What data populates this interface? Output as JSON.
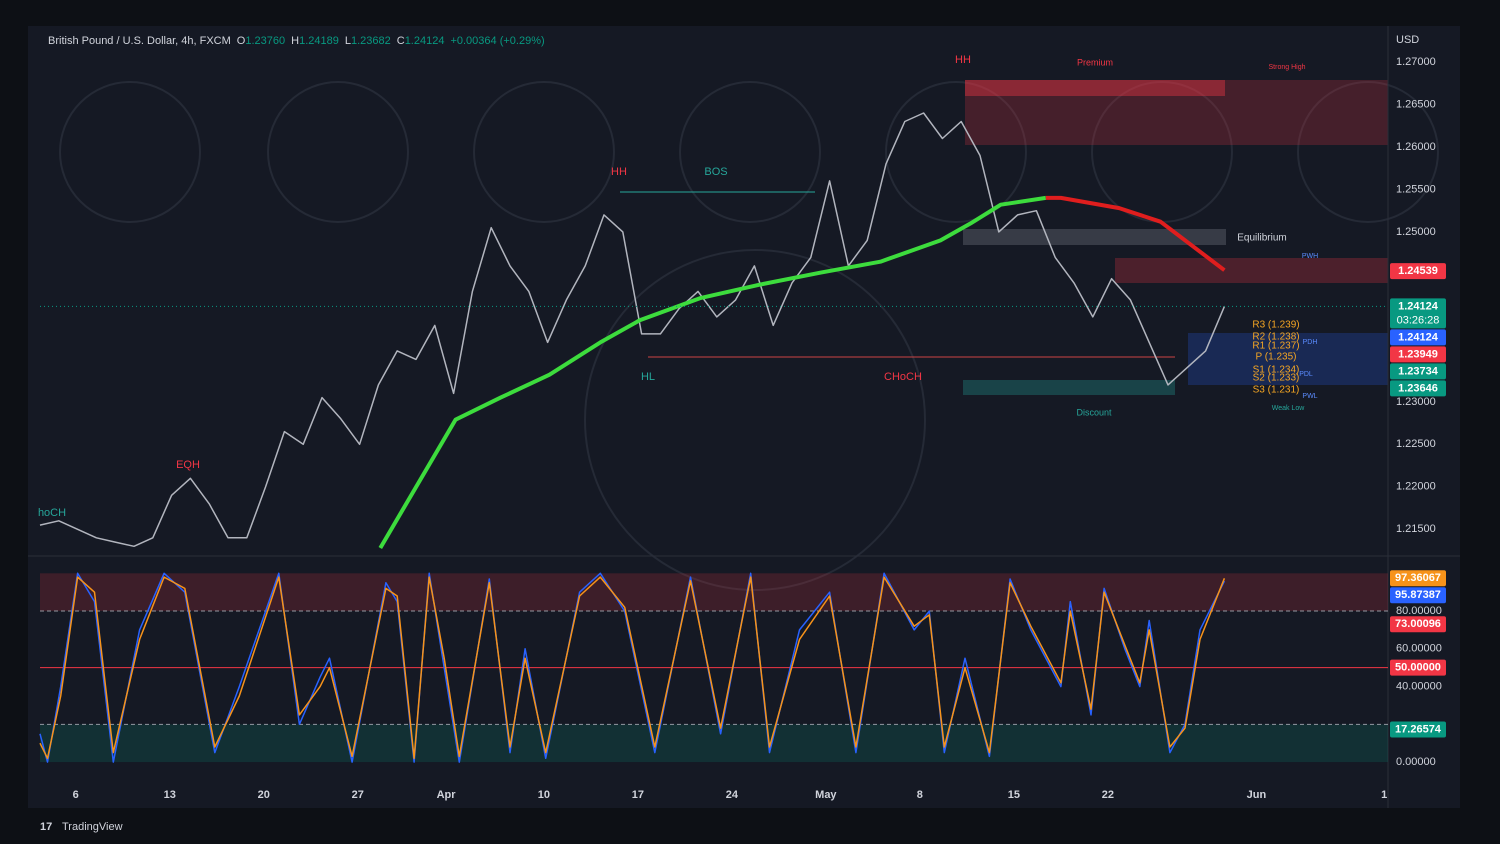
{
  "header": {
    "symbol": "British Pound / U.S. Dollar, 4h, FXCM",
    "ohlc": [
      [
        "O",
        "1.23760"
      ],
      [
        "H",
        "1.24189"
      ],
      [
        "L",
        "1.23682"
      ],
      [
        "C",
        "1.24124"
      ]
    ],
    "change": "+0.00364 (+0.29%)",
    "currency": "USD",
    "brand": "TradingView"
  },
  "chart_data": [
    {
      "type": "line",
      "xlim": [
        0,
        71.7
      ],
      "ylim": [
        1.2128,
        1.274
      ],
      "xticks": [
        {
          "value": 1.9,
          "label": "6"
        },
        {
          "value": 6.9,
          "label": "13"
        },
        {
          "value": 11.9,
          "label": "20"
        },
        {
          "value": 16.9,
          "label": "27"
        },
        {
          "value": 21.6,
          "label": "Apr"
        },
        {
          "value": 26.8,
          "label": "10"
        },
        {
          "value": 31.8,
          "label": "17"
        },
        {
          "value": 36.8,
          "label": "24"
        },
        {
          "value": 41.8,
          "label": "May"
        },
        {
          "value": 46.8,
          "label": "8"
        },
        {
          "value": 51.8,
          "label": "15"
        },
        {
          "value": 56.8,
          "label": "22"
        },
        {
          "value": 64.7,
          "label": "Jun"
        },
        {
          "value": 71.5,
          "label": "1"
        }
      ],
      "yticks": [
        {
          "value": 1.27,
          "label": "1.27000"
        },
        {
          "value": 1.265,
          "label": "1.26500"
        },
        {
          "value": 1.26,
          "label": "1.26000"
        },
        {
          "value": 1.255,
          "label": "1.25500"
        },
        {
          "value": 1.25,
          "label": "1.25000"
        },
        {
          "value": 1.23,
          "label": "1.23000"
        },
        {
          "value": 1.225,
          "label": "1.22500"
        },
        {
          "value": 1.22,
          "label": "1.22000"
        },
        {
          "value": 1.215,
          "label": "1.21500"
        }
      ],
      "series": [
        {
          "color": "#b2b5be",
          "x": [
            0,
            1,
            2,
            3,
            4,
            5,
            6,
            7,
            8,
            9,
            10,
            11,
            12,
            13,
            14,
            15,
            16,
            17,
            18,
            19,
            20,
            21,
            22,
            23,
            24,
            25,
            26,
            27,
            28,
            29,
            30,
            31,
            32,
            33,
            34,
            35,
            36,
            37,
            38,
            39,
            40,
            41,
            42,
            43,
            44,
            45,
            46,
            47,
            48,
            49,
            50,
            51,
            52,
            53,
            54,
            55,
            56,
            57,
            58,
            59,
            60,
            61,
            62,
            63
          ],
          "values": [
            1.2155,
            1.216,
            1.215,
            1.214,
            1.2135,
            1.213,
            1.214,
            1.219,
            1.221,
            1.218,
            1.214,
            1.214,
            1.22,
            1.2265,
            1.225,
            1.2305,
            1.228,
            1.225,
            1.232,
            1.236,
            1.235,
            1.239,
            1.231,
            1.243,
            1.2505,
            1.246,
            1.243,
            1.237,
            1.242,
            1.246,
            1.252,
            1.25,
            1.238,
            1.238,
            1.241,
            1.243,
            1.24,
            1.242,
            1.246,
            1.239,
            1.244,
            1.247,
            1.256,
            1.246,
            1.249,
            1.258,
            1.263,
            1.264,
            1.261,
            1.263,
            1.259,
            1.25,
            1.252,
            1.2525,
            1.247,
            1.244,
            1.24,
            1.2445,
            1.242,
            1.237,
            1.232,
            1.234,
            1.236,
            1.24124
          ]
        },
        {
          "color": "#3ddc3d",
          "x": [
            18.1,
            22.1,
            24.5,
            27.1,
            29.8,
            31.9,
            35.1,
            38.3,
            41.5,
            44.7,
            47.9,
            49.5,
            51.1,
            53.5
          ],
          "values": [
            1.2128,
            1.2279,
            1.2305,
            1.2332,
            1.237,
            1.2396,
            1.2422,
            1.2438,
            1.2452,
            1.2465,
            1.249,
            1.251,
            1.2532,
            1.254
          ]
        },
        {
          "color": "#e01e1e",
          "x": [
            53.5,
            54.3,
            57.4,
            59.6,
            63.0
          ],
          "values": [
            1.254,
            1.254,
            1.2528,
            1.2512,
            1.2455
          ]
        }
      ],
      "price_tags": [
        {
          "value": 1.24539,
          "label": "1.24539",
          "color": "#f23645"
        },
        {
          "value": 1.24124,
          "label": "1.24124",
          "color": "#089981"
        },
        {
          "value": 1.24124,
          "label": "1.24124",
          "color": "#2962ff"
        },
        {
          "value": 1.23949,
          "label": "1.23949",
          "color": "#f23645"
        },
        {
          "value": 1.23734,
          "label": "1.23734",
          "color": "#089981"
        },
        {
          "value": 1.23646,
          "label": "1.23646",
          "color": "#089981"
        }
      ],
      "countdown": "03:26:28",
      "annotations": [
        "HH",
        "BOS",
        "HH",
        "Premium",
        "Strong High",
        "Equilibrium",
        "HL",
        "CHoCH",
        "Discount",
        "Weak Low",
        "EQH",
        "hoCH",
        "R3 (1.239)",
        "R2 (1.238)",
        "R1 (1.237)",
        "P (1.235)",
        "S1 (1.234)",
        "S2 (1.233)",
        "S3 (1.231)",
        "PDH",
        "PDL",
        "PWL",
        "PWH"
      ]
    },
    {
      "type": "line",
      "ylim": [
        -9.5,
        104.4
      ],
      "yticks": [
        {
          "value": 80,
          "label": "80.00000"
        },
        {
          "value": 60,
          "label": "60.00000"
        },
        {
          "value": 40,
          "label": "40.00000"
        },
        {
          "value": 0,
          "label": "0.00000"
        }
      ],
      "levels": [
        80,
        50,
        20
      ],
      "level_colors": [
        "#9598a1",
        "#f23645",
        "#9598a1"
      ],
      "x": [
        0,
        0.4,
        1.1,
        2.0,
        2.9,
        3.9,
        5.3,
        6.6,
        7.7,
        9.3,
        10.6,
        12.7,
        13.8,
        14.9,
        15.4,
        16.6,
        18.4,
        19.0,
        19.9,
        20.7,
        21.5,
        22.3,
        23.9,
        25.0,
        25.8,
        26.9,
        28.7,
        29.8,
        31.1,
        32.7,
        34.6,
        36.2,
        37.8,
        38.8,
        40.4,
        42.0,
        43.4,
        44.9,
        46.5,
        47.3,
        48.1,
        49.2,
        50.5,
        51.6,
        52.7,
        54.3,
        54.8,
        55.9,
        56.6,
        57.7,
        58.5,
        59.0,
        60.1,
        60.9,
        61.7,
        63.0
      ],
      "series": [
        {
          "color": "#2962ff",
          "values": [
            15,
            0,
            40,
            100,
            85,
            0,
            70,
            100,
            90,
            5,
            40,
            100,
            20,
            45,
            55,
            0,
            95,
            85,
            0,
            100,
            50,
            0,
            97,
            5,
            60,
            2,
            90,
            100,
            80,
            5,
            98,
            15,
            100,
            5,
            70,
            90,
            5,
            100,
            70,
            80,
            5,
            55,
            3,
            97,
            70,
            40,
            85,
            25,
            92,
            60,
            40,
            75,
            5,
            20,
            70,
            95.87387
          ]
        },
        {
          "color": "#f7931a",
          "values": [
            10,
            2,
            35,
            98,
            90,
            5,
            65,
            98,
            92,
            8,
            35,
            98,
            25,
            40,
            50,
            3,
            92,
            88,
            2,
            98,
            55,
            3,
            95,
            8,
            55,
            5,
            88,
            98,
            82,
            8,
            96,
            18,
            98,
            8,
            65,
            88,
            8,
            98,
            72,
            78,
            8,
            50,
            5,
            95,
            72,
            42,
            80,
            28,
            90,
            62,
            42,
            70,
            8,
            18,
            65,
            97.36067
          ]
        }
      ],
      "tags": [
        {
          "value": 97.36067,
          "label": "97.36067",
          "color": "#f7931a"
        },
        {
          "value": 95.87387,
          "label": "95.87387",
          "color": "#2962ff"
        },
        {
          "value": 73.00096,
          "label": "73.00096",
          "color": "#f23645"
        },
        {
          "value": 50,
          "label": "50.00000",
          "color": "#f23645"
        },
        {
          "value": 17.26574,
          "label": "17.26574",
          "color": "#089981"
        }
      ]
    }
  ]
}
